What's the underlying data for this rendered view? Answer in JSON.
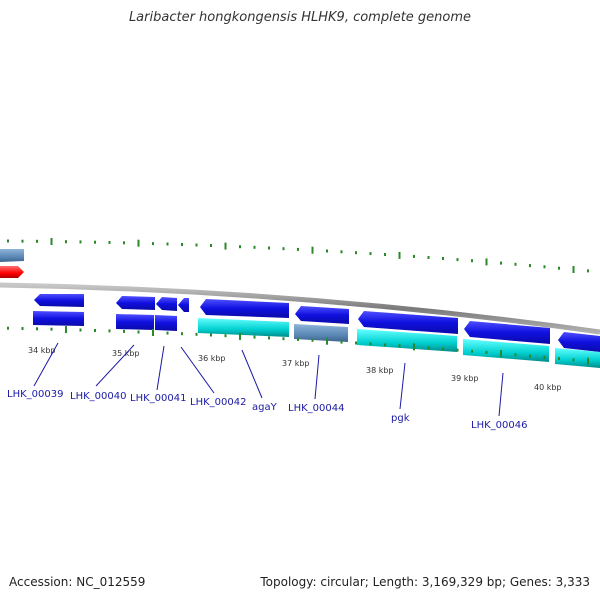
{
  "title": "Laribacter hongkongensis HLHK9, complete genome",
  "footer": {
    "accession": "Accession: NC_012559",
    "summary": "Topology: circular; Length: 3,169,329 bp; Genes: 3,333"
  },
  "colors": {
    "backbone": "#8c8c8c",
    "cds_forward": "#1414e6",
    "cds_reverse": "#1414e6",
    "trna": "#00cccc",
    "gene_grey": "#5b88b5",
    "rrna": "#ff0000",
    "tick": "#2a8a2a",
    "label": "#1a1aa6"
  },
  "kbp_labels": [
    "34 kbp",
    "35 kbp",
    "36 kbp",
    "37 kbp",
    "38 kbp",
    "39 kbp",
    "40 kbp"
  ],
  "gene_labels": [
    "LHK_00039",
    "LHK_00040",
    "LHK_00041",
    "LHK_00042",
    "agaY",
    "LHK_00044",
    "pgk",
    "LHK_00046"
  ]
}
